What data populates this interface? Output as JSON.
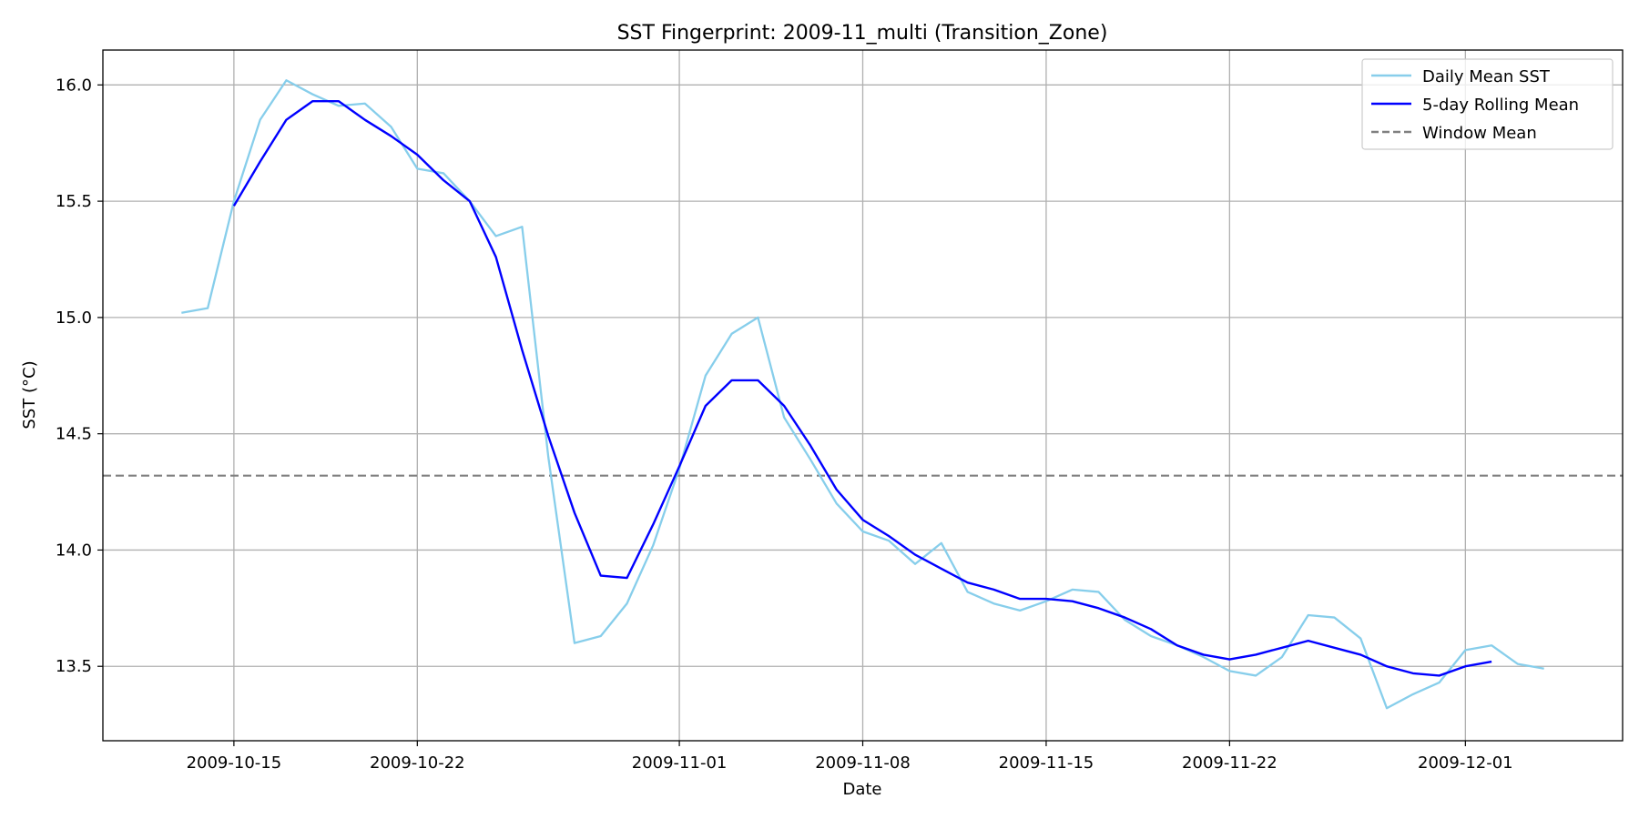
{
  "chart_data": {
    "type": "line",
    "title": "SST Fingerprint: 2009-11_multi (Transition_Zone)",
    "xlabel": "Date",
    "ylabel": "SST (°C)",
    "x_range": [
      "2009-10-10",
      "2009-12-07"
    ],
    "ylim": [
      13.18,
      16.15
    ],
    "x_ticks": [
      "2009-10-15",
      "2009-10-22",
      "2009-11-01",
      "2009-11-08",
      "2009-11-15",
      "2009-11-22",
      "2009-12-01"
    ],
    "y_ticks": [
      13.5,
      14.0,
      14.5,
      15.0,
      15.5,
      16.0
    ],
    "y_tick_labels": [
      "13.5",
      "14.0",
      "14.5",
      "15.0",
      "15.5",
      "16.0"
    ],
    "grid": true,
    "legend_position": "top-right",
    "window_mean": 14.32,
    "series": [
      {
        "name": "Daily Mean SST",
        "color": "#87ceeb",
        "style": "solid",
        "start_date": "2009-10-13",
        "values": [
          15.02,
          15.04,
          15.5,
          15.85,
          16.02,
          15.96,
          15.91,
          15.92,
          15.82,
          15.64,
          15.62,
          15.5,
          15.35,
          15.39,
          14.4,
          13.6,
          13.63,
          13.77,
          14.02,
          14.35,
          14.75,
          14.93,
          15.0,
          14.57,
          14.39,
          14.2,
          14.08,
          14.04,
          13.94,
          14.03,
          13.82,
          13.77,
          13.74,
          13.78,
          13.83,
          13.82,
          13.7,
          13.63,
          13.59,
          13.54,
          13.48,
          13.46,
          13.54,
          13.72,
          13.71,
          13.62,
          13.32,
          13.38,
          13.43,
          13.57,
          13.59,
          13.51,
          13.49
        ]
      },
      {
        "name": "5-day Rolling Mean",
        "color": "#0000ff",
        "style": "solid",
        "start_date": "2009-10-15",
        "values": [
          15.48,
          15.67,
          15.85,
          15.93,
          15.93,
          15.85,
          15.78,
          15.7,
          15.59,
          15.5,
          15.26,
          14.86,
          14.49,
          14.16,
          13.89,
          13.88,
          14.11,
          14.36,
          14.62,
          14.73,
          14.73,
          14.62,
          14.45,
          14.26,
          14.13,
          14.06,
          13.98,
          13.92,
          13.86,
          13.83,
          13.79,
          13.79,
          13.78,
          13.75,
          13.71,
          13.66,
          13.59,
          13.55,
          13.53,
          13.55,
          13.58,
          13.61,
          13.58,
          13.55,
          13.5,
          13.47,
          13.46,
          13.5,
          13.52
        ]
      },
      {
        "name": "Window Mean",
        "color": "#808080",
        "style": "dashed"
      }
    ]
  }
}
